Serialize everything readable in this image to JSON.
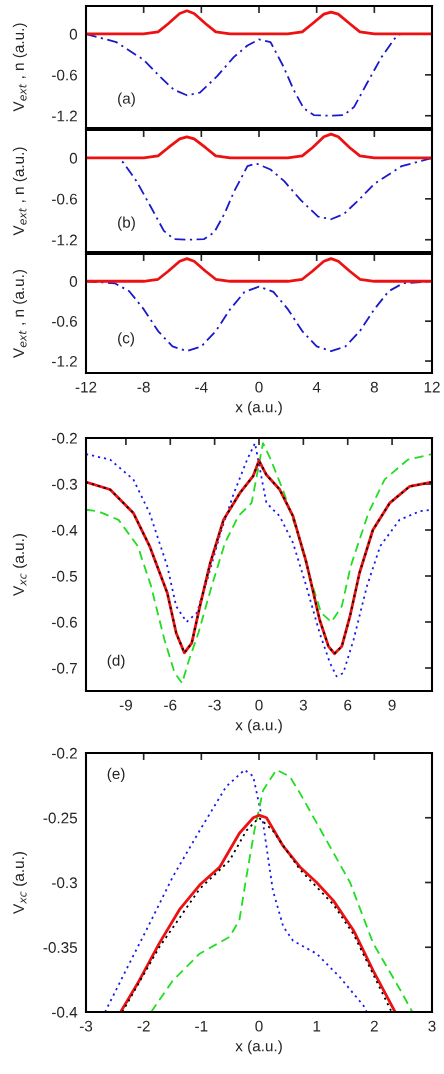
{
  "chart_data": [
    {
      "type": "line",
      "ylabel": "V$_{ext}$ , n (a.u.)",
      "annotations": [
        "(a)"
      ],
      "xlim": [
        -12,
        12
      ],
      "ylim": [
        -1.38,
        0.41
      ],
      "xticks": [
        -12,
        -8,
        -4,
        0,
        4,
        8,
        12
      ],
      "yticks": [
        0,
        -0.6,
        -1.2
      ],
      "tick_labels": "y",
      "series": [
        {
          "color": "#1a1acc",
          "line_style": "dashdot",
          "x": [
            -12,
            -9.9,
            -8,
            -6.9,
            -5.9,
            -5,
            -4.1,
            -2.9,
            -1.75,
            -0.8,
            0,
            0.8,
            1.7,
            2.4,
            3.1,
            3.8,
            4.9,
            5.9,
            6.6,
            7.5,
            8.5,
            9.4,
            9.8,
            12
          ],
          "values": [
            0,
            -0.12,
            -0.38,
            -0.62,
            -0.82,
            -0.9,
            -0.86,
            -0.62,
            -0.34,
            -0.17,
            -0.08,
            -0.12,
            -0.48,
            -0.82,
            -1.09,
            -1.19,
            -1.2,
            -1.19,
            -1.07,
            -0.72,
            -0.34,
            -0.07,
            0,
            0
          ]
        },
        {
          "color": "#ee1111",
          "line_style": "solid",
          "x": [
            -12,
            -8,
            -7,
            -6.3,
            -5.5,
            -5,
            -4.5,
            -3.7,
            -3,
            -2,
            2,
            3,
            3.7,
            4.5,
            5,
            5.5,
            6.3,
            7,
            8,
            12
          ],
          "values": [
            0,
            0,
            0.03,
            0.15,
            0.3,
            0.34,
            0.3,
            0.15,
            0.03,
            0,
            0,
            0.03,
            0.15,
            0.29,
            0.32,
            0.29,
            0.15,
            0.03,
            0,
            0
          ]
        }
      ]
    },
    {
      "type": "line",
      "ylabel": "V$_{ext}$ , n (a.u.)",
      "annotations": [
        "(b)"
      ],
      "xlim": [
        -12,
        12
      ],
      "ylim": [
        -1.38,
        0.41
      ],
      "xticks": [
        -12,
        -8,
        -4,
        0,
        4,
        8,
        12
      ],
      "yticks": [
        0,
        -0.6,
        -1.2
      ],
      "tick_labels": "y",
      "series": [
        {
          "color": "#1a1acc",
          "line_style": "dashdot",
          "x": [
            -12,
            -9.8,
            -9.4,
            -8.5,
            -7.5,
            -6.6,
            -5.9,
            -4.9,
            -3.8,
            -3.1,
            -2.4,
            -1.7,
            -0.8,
            -0.2,
            0.8,
            1.75,
            2.9,
            4.1,
            5,
            5.9,
            6.9,
            8,
            9.9,
            12
          ],
          "values": [
            0,
            0,
            -0.07,
            -0.34,
            -0.72,
            -1.07,
            -1.19,
            -1.2,
            -1.19,
            -1.09,
            -0.82,
            -0.48,
            -0.12,
            -0.08,
            -0.17,
            -0.34,
            -0.62,
            -0.86,
            -0.9,
            -0.82,
            -0.62,
            -0.38,
            -0.12,
            0
          ]
        },
        {
          "color": "#ee1111",
          "line_style": "solid",
          "x": [
            -12,
            -8,
            -7,
            -6.3,
            -5.5,
            -5,
            -4.5,
            -3.7,
            -3,
            -2,
            2,
            3,
            3.7,
            4.5,
            5,
            5.5,
            6.3,
            7,
            8,
            12
          ],
          "values": [
            0,
            0,
            0.03,
            0.15,
            0.28,
            0.31,
            0.28,
            0.15,
            0.03,
            0,
            0,
            0.03,
            0.15,
            0.31,
            0.35,
            0.31,
            0.15,
            0.03,
            0,
            0
          ]
        }
      ]
    },
    {
      "type": "line",
      "ylabel": "V$_{ext}$ , n (a.u.)",
      "xlabel": "x (a.u.)",
      "annotations": [
        "(c)"
      ],
      "xlim": [
        -12,
        12
      ],
      "ylim": [
        -1.38,
        0.41
      ],
      "xticks": [
        -12,
        -8,
        -4,
        0,
        4,
        8,
        12
      ],
      "yticks": [
        0,
        -0.6,
        -1.2
      ],
      "series": [
        {
          "color": "#1a1acc",
          "line_style": "dashdot",
          "x": [
            -12,
            -10,
            -9,
            -8,
            -7,
            -6,
            -5,
            -4,
            -3,
            -2,
            -1,
            0,
            1,
            2,
            3,
            4,
            5,
            6,
            7,
            8,
            9,
            10,
            12
          ],
          "values": [
            0,
            -0.03,
            -0.15,
            -0.42,
            -0.75,
            -0.98,
            -1.05,
            -0.98,
            -0.75,
            -0.42,
            -0.16,
            -0.08,
            -0.16,
            -0.42,
            -0.75,
            -0.98,
            -1.05,
            -0.98,
            -0.75,
            -0.42,
            -0.15,
            -0.03,
            0
          ]
        },
        {
          "color": "#ee1111",
          "line_style": "solid",
          "x": [
            -12,
            -8,
            -7,
            -6.3,
            -5.5,
            -5,
            -4.5,
            -3.7,
            -3,
            -2,
            2,
            3,
            3.7,
            4.5,
            5,
            5.5,
            6.3,
            7,
            8,
            12
          ],
          "values": [
            0,
            0,
            0.03,
            0.15,
            0.3,
            0.34,
            0.3,
            0.15,
            0.03,
            0,
            0,
            0.03,
            0.15,
            0.3,
            0.34,
            0.3,
            0.15,
            0.03,
            0,
            0
          ]
        }
      ]
    },
    {
      "type": "line",
      "ylabel": "V$_{xc}$ (a.u.)",
      "xlabel": "x (a.u.)",
      "annotations": [
        "(d)"
      ],
      "xlim": [
        -11.7,
        11.7
      ],
      "ylim": [
        -0.75,
        -0.2
      ],
      "xticks": [
        -9,
        -6,
        -3,
        0,
        3,
        6,
        9
      ],
      "yticks": [
        -0.2,
        -0.3,
        -0.4,
        -0.5,
        -0.6,
        -0.7
      ],
      "series": [
        {
          "color": "#1a1aee",
          "line_style": "dotted",
          "x": [
            -11.7,
            -10.07,
            -8.5,
            -7.4,
            -6.2,
            -5.6,
            -4.9,
            -4.2,
            -3.5,
            -2.6,
            -1.7,
            -0.8,
            -0.27,
            0.2,
            0.5,
            1.4,
            2.3,
            3.2,
            4.1,
            4.8,
            5.25,
            5.7,
            6.4,
            7.3,
            8.2,
            9.5,
            10.9,
            11.7
          ],
          "values": [
            -0.235,
            -0.247,
            -0.29,
            -0.363,
            -0.479,
            -0.566,
            -0.6,
            -0.58,
            -0.508,
            -0.406,
            -0.32,
            -0.247,
            -0.211,
            -0.291,
            -0.341,
            -0.37,
            -0.428,
            -0.522,
            -0.624,
            -0.689,
            -0.718,
            -0.711,
            -0.638,
            -0.522,
            -0.435,
            -0.378,
            -0.359,
            -0.356
          ]
        },
        {
          "color": "#22dd22",
          "line_style": "dashed",
          "x": [
            -11.7,
            -10.9,
            -9.5,
            -8.2,
            -7.3,
            -6.4,
            -5.7,
            -5.2,
            -4.8,
            -4.1,
            -3.2,
            -2.3,
            -1.4,
            -0.5,
            -0.2,
            0.27,
            0.8,
            1.7,
            2.6,
            3.5,
            4.2,
            4.9,
            5.6,
            6.2,
            7.4,
            8.5,
            10.07,
            11.7
          ],
          "values": [
            -0.356,
            -0.359,
            -0.378,
            -0.435,
            -0.522,
            -0.638,
            -0.711,
            -0.733,
            -0.689,
            -0.624,
            -0.522,
            -0.428,
            -0.37,
            -0.341,
            -0.291,
            -0.211,
            -0.247,
            -0.32,
            -0.406,
            -0.508,
            -0.58,
            -0.6,
            -0.566,
            -0.479,
            -0.363,
            -0.29,
            -0.247,
            -0.235
          ]
        },
        {
          "color": "#ee1111",
          "line_style": "solid",
          "x": [
            -11.7,
            -10.07,
            -8.5,
            -7.4,
            -6.2,
            -5.6,
            -5.05,
            -4.55,
            -4.0,
            -3.3,
            -2.4,
            -1.3,
            -0.4,
            0,
            0.5,
            1.4,
            2.3,
            3.2,
            4.1,
            4.7,
            5.1,
            5.6,
            6.15,
            6.8,
            7.7,
            8.85,
            10.2,
            11.7
          ],
          "values": [
            -0.296,
            -0.312,
            -0.363,
            -0.435,
            -0.537,
            -0.624,
            -0.667,
            -0.646,
            -0.566,
            -0.472,
            -0.378,
            -0.32,
            -0.283,
            -0.249,
            -0.28,
            -0.312,
            -0.37,
            -0.47,
            -0.595,
            -0.653,
            -0.669,
            -0.653,
            -0.588,
            -0.493,
            -0.4,
            -0.341,
            -0.305,
            -0.296
          ]
        },
        {
          "color": "#000000",
          "line_style": "dotted",
          "x": [
            -11.7,
            -10.07,
            -8.5,
            -7.4,
            -6.2,
            -5.6,
            -5.05,
            -4.55,
            -4.0,
            -3.3,
            -2.4,
            -1.3,
            -0.4,
            0,
            0.5,
            1.4,
            2.3,
            3.2,
            4.1,
            4.7,
            5.1,
            5.6,
            6.15,
            6.8,
            7.7,
            8.85,
            10.2,
            11.7
          ],
          "values": [
            -0.296,
            -0.312,
            -0.363,
            -0.435,
            -0.537,
            -0.624,
            -0.667,
            -0.646,
            -0.566,
            -0.472,
            -0.378,
            -0.32,
            -0.283,
            -0.25,
            -0.28,
            -0.312,
            -0.37,
            -0.47,
            -0.595,
            -0.653,
            -0.669,
            -0.653,
            -0.588,
            -0.493,
            -0.4,
            -0.341,
            -0.305,
            -0.296
          ]
        }
      ]
    },
    {
      "type": "line",
      "ylabel": "V$_{xc}$ (a.u.)",
      "xlabel": "x (a.u.)",
      "annotations": [
        "(e)"
      ],
      "xlim": [
        -3,
        3
      ],
      "ylim": [
        -0.4,
        -0.2
      ],
      "xticks": [
        -3,
        -2,
        -1,
        0,
        1,
        2,
        3
      ],
      "yticks": [
        -0.2,
        -0.25,
        -0.3,
        -0.35,
        -0.4
      ],
      "series": [
        {
          "color": "#1a1aee",
          "line_style": "dotted",
          "x": [
            -2.67,
            -2.31,
            -1.9,
            -1.5,
            -1.03,
            -0.57,
            -0.25,
            -0.1,
            0.07,
            0.24,
            0.42,
            0.59,
            1.0,
            1.4,
            1.81,
            1.87
          ],
          "values": [
            -0.4,
            -0.368,
            -0.332,
            -0.296,
            -0.26,
            -0.226,
            -0.213,
            -0.218,
            -0.254,
            -0.306,
            -0.334,
            -0.345,
            -0.355,
            -0.373,
            -0.395,
            -0.4
          ]
        },
        {
          "color": "#22dd22",
          "line_style": "dashed",
          "x": [
            -1.87,
            -1.5,
            -1.03,
            -0.51,
            -0.34,
            -0.22,
            -0.08,
            0.07,
            0.3,
            0.53,
            0.71,
            1.0,
            1.58,
            1.98,
            2.45,
            2.66
          ],
          "values": [
            -0.4,
            -0.376,
            -0.355,
            -0.342,
            -0.329,
            -0.296,
            -0.26,
            -0.229,
            -0.213,
            -0.218,
            -0.231,
            -0.254,
            -0.3,
            -0.347,
            -0.383,
            -0.4
          ]
        },
        {
          "color": "#ee1111",
          "line_style": "solid",
          "x": [
            -2.4,
            -2.08,
            -1.73,
            -1.38,
            -1.03,
            -0.68,
            -0.34,
            -0.1,
            0,
            0.13,
            0.42,
            0.71,
            1.0,
            1.29,
            1.64,
            1.98,
            2.36
          ],
          "values": [
            -0.4,
            -0.376,
            -0.347,
            -0.321,
            -0.302,
            -0.288,
            -0.262,
            -0.25,
            -0.248,
            -0.25,
            -0.272,
            -0.288,
            -0.3,
            -0.314,
            -0.337,
            -0.368,
            -0.4
          ]
        },
        {
          "color": "#000000",
          "line_style": "dotted",
          "x": [
            -2.37,
            -1.73,
            -1.03,
            -0.51,
            -0.22,
            0,
            0.24,
            0.71,
            1.29,
            1.64,
            2.3
          ],
          "values": [
            -0.4,
            -0.35,
            -0.305,
            -0.283,
            -0.26,
            -0.25,
            -0.26,
            -0.29,
            -0.317,
            -0.34,
            -0.4
          ]
        }
      ]
    }
  ]
}
